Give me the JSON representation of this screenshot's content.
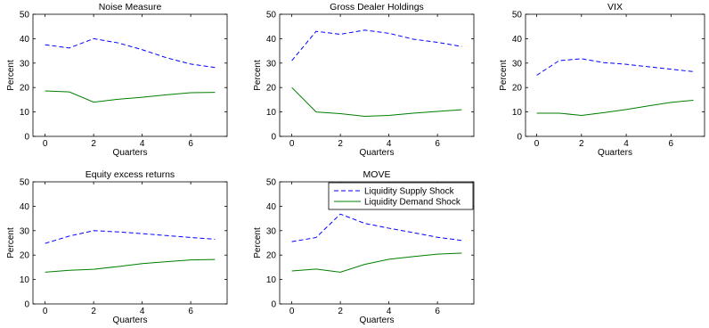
{
  "chart_data": [
    {
      "type": "line",
      "title": "Noise Measure",
      "xlabel": "Quarters",
      "ylabel": "Percent",
      "xlim": [
        -0.5,
        7.5
      ],
      "ylim": [
        0,
        50
      ],
      "xticks": [
        0,
        2,
        4,
        6
      ],
      "yticks": [
        0,
        10,
        20,
        30,
        40,
        50
      ],
      "x": [
        0,
        1,
        2,
        3,
        4,
        5,
        6,
        7
      ],
      "series": [
        {
          "name": "Liquidity Supply Shock",
          "values": [
            37.5,
            36.2,
            40.0,
            38.3,
            35.5,
            32.2,
            29.6,
            28.2
          ],
          "color": "#0000ff",
          "style": "dashed"
        },
        {
          "name": "Liquidity Demand Shock",
          "values": [
            18.6,
            18.2,
            14.0,
            15.2,
            16.0,
            17.0,
            17.9,
            18.0
          ],
          "color": "#007f00",
          "style": "solid"
        }
      ]
    },
    {
      "type": "line",
      "title": "Gross Dealer Holdings",
      "xlabel": "Quarters",
      "ylabel": "Percent",
      "xlim": [
        -0.5,
        7.5
      ],
      "ylim": [
        0,
        50
      ],
      "xticks": [
        0,
        2,
        4,
        6
      ],
      "yticks": [
        0,
        10,
        20,
        30,
        40,
        50
      ],
      "x": [
        0,
        1,
        2,
        3,
        4,
        5,
        6,
        7
      ],
      "series": [
        {
          "name": "Liquidity Supply Shock",
          "values": [
            31.0,
            43.0,
            41.8,
            43.5,
            42.2,
            39.8,
            38.5,
            36.8
          ],
          "color": "#0000ff",
          "style": "dashed"
        },
        {
          "name": "Liquidity Demand Shock",
          "values": [
            20.0,
            10.0,
            9.3,
            8.2,
            8.6,
            9.5,
            10.2,
            10.9
          ],
          "color": "#007f00",
          "style": "solid"
        }
      ]
    },
    {
      "type": "line",
      "title": "VIX",
      "xlabel": "Quarters",
      "ylabel": "Percent",
      "xlim": [
        -0.5,
        7.5
      ],
      "ylim": [
        0,
        50
      ],
      "xticks": [
        0,
        2,
        4,
        6
      ],
      "yticks": [
        0,
        10,
        20,
        30,
        40,
        50
      ],
      "x": [
        0,
        1,
        2,
        3,
        4,
        5,
        6,
        7
      ],
      "series": [
        {
          "name": "Liquidity Supply Shock",
          "values": [
            25.0,
            31.0,
            31.8,
            30.2,
            29.5,
            28.5,
            27.5,
            26.5
          ],
          "color": "#0000ff",
          "style": "dashed"
        },
        {
          "name": "Liquidity Demand Shock",
          "values": [
            9.5,
            9.5,
            8.6,
            9.7,
            11.0,
            12.5,
            13.9,
            14.8
          ],
          "color": "#007f00",
          "style": "solid"
        }
      ]
    },
    {
      "type": "line",
      "title": "Equity excess returns",
      "xlabel": "Quarters",
      "ylabel": "Percent",
      "xlim": [
        -0.5,
        7.5
      ],
      "ylim": [
        0,
        50
      ],
      "xticks": [
        0,
        2,
        4,
        6
      ],
      "yticks": [
        0,
        10,
        20,
        30,
        40,
        50
      ],
      "x": [
        0,
        1,
        2,
        3,
        4,
        5,
        6,
        7
      ],
      "series": [
        {
          "name": "Liquidity Supply Shock",
          "values": [
            24.8,
            27.8,
            30.0,
            29.5,
            28.8,
            28.0,
            27.2,
            26.5
          ],
          "color": "#0000ff",
          "style": "dashed"
        },
        {
          "name": "Liquidity Demand Shock",
          "values": [
            13.0,
            13.8,
            14.2,
            15.3,
            16.5,
            17.3,
            18.0,
            18.2
          ],
          "color": "#007f00",
          "style": "solid"
        }
      ]
    },
    {
      "type": "line",
      "title": "MOVE",
      "xlabel": "Quarters",
      "ylabel": "Percent",
      "xlim": [
        -0.5,
        7.5
      ],
      "ylim": [
        0,
        50
      ],
      "xticks": [
        0,
        2,
        4,
        6
      ],
      "yticks": [
        0,
        10,
        20,
        30,
        40,
        50
      ],
      "x": [
        0,
        1,
        2,
        3,
        4,
        5,
        6,
        7
      ],
      "legend": "top-right",
      "series": [
        {
          "name": "Liquidity Supply Shock",
          "values": [
            25.5,
            27.2,
            36.8,
            33.0,
            31.0,
            29.2,
            27.3,
            26.0
          ],
          "color": "#0000ff",
          "style": "dashed"
        },
        {
          "name": "Liquidity Demand Shock",
          "values": [
            13.5,
            14.3,
            13.0,
            16.2,
            18.3,
            19.4,
            20.4,
            20.8
          ],
          "color": "#007f00",
          "style": "solid"
        }
      ]
    }
  ]
}
